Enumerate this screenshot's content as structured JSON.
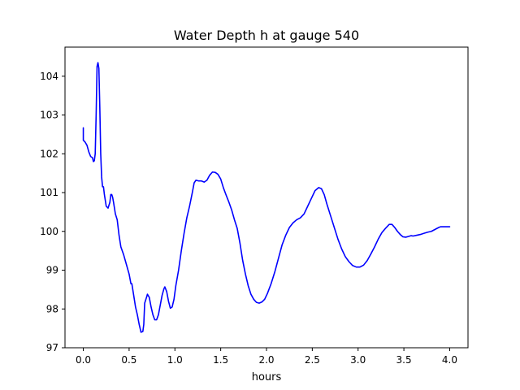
{
  "chart_data": {
    "type": "line",
    "title": "Water Depth h at gauge 540",
    "xlabel": "hours",
    "ylabel": "",
    "xlim": [
      -0.2,
      4.2
    ],
    "ylim": [
      97.0,
      104.75
    ],
    "x_ticks": [
      0.0,
      0.5,
      1.0,
      1.5,
      2.0,
      2.5,
      3.0,
      3.5,
      4.0
    ],
    "x_tick_labels": [
      "0.0",
      "0.5",
      "1.0",
      "1.5",
      "2.0",
      "2.5",
      "3.0",
      "3.5",
      "4.0"
    ],
    "y_ticks": [
      97,
      98,
      99,
      100,
      101,
      102,
      103,
      104
    ],
    "y_tick_labels": [
      "97",
      "98",
      "99",
      "100",
      "101",
      "102",
      "103",
      "104"
    ],
    "grid": false,
    "series": [
      {
        "name": "",
        "color": "#0000ff",
        "points": [
          [
            0.0,
            102.67
          ],
          [
            0.0,
            102.35
          ],
          [
            0.02,
            102.3
          ],
          [
            0.04,
            102.22
          ],
          [
            0.06,
            102.05
          ],
          [
            0.08,
            101.93
          ],
          [
            0.1,
            101.9
          ],
          [
            0.11,
            101.8
          ],
          [
            0.12,
            101.82
          ],
          [
            0.13,
            102.0
          ],
          [
            0.14,
            103.0
          ],
          [
            0.15,
            104.25
          ],
          [
            0.16,
            104.35
          ],
          [
            0.17,
            104.2
          ],
          [
            0.18,
            103.2
          ],
          [
            0.19,
            102.0
          ],
          [
            0.2,
            101.4
          ],
          [
            0.21,
            101.15
          ],
          [
            0.22,
            101.15
          ],
          [
            0.23,
            100.95
          ],
          [
            0.25,
            100.65
          ],
          [
            0.27,
            100.6
          ],
          [
            0.29,
            100.75
          ],
          [
            0.3,
            100.95
          ],
          [
            0.31,
            100.95
          ],
          [
            0.32,
            100.88
          ],
          [
            0.33,
            100.75
          ],
          [
            0.35,
            100.45
          ],
          [
            0.37,
            100.3
          ],
          [
            0.39,
            99.9
          ],
          [
            0.41,
            99.6
          ],
          [
            0.44,
            99.4
          ],
          [
            0.47,
            99.15
          ],
          [
            0.5,
            98.9
          ],
          [
            0.52,
            98.65
          ],
          [
            0.53,
            98.65
          ],
          [
            0.55,
            98.35
          ],
          [
            0.57,
            98.05
          ],
          [
            0.59,
            97.85
          ],
          [
            0.61,
            97.6
          ],
          [
            0.63,
            97.4
          ],
          [
            0.65,
            97.42
          ],
          [
            0.66,
            97.6
          ],
          [
            0.67,
            98.15
          ],
          [
            0.69,
            98.3
          ],
          [
            0.7,
            98.38
          ],
          [
            0.72,
            98.3
          ],
          [
            0.74,
            98.05
          ],
          [
            0.76,
            97.85
          ],
          [
            0.78,
            97.72
          ],
          [
            0.8,
            97.72
          ],
          [
            0.82,
            97.85
          ],
          [
            0.84,
            98.1
          ],
          [
            0.86,
            98.35
          ],
          [
            0.88,
            98.52
          ],
          [
            0.89,
            98.57
          ],
          [
            0.91,
            98.45
          ],
          [
            0.93,
            98.2
          ],
          [
            0.95,
            98.02
          ],
          [
            0.97,
            98.05
          ],
          [
            0.99,
            98.25
          ],
          [
            1.01,
            98.6
          ],
          [
            1.04,
            99.0
          ],
          [
            1.07,
            99.5
          ],
          [
            1.1,
            99.95
          ],
          [
            1.13,
            100.35
          ],
          [
            1.16,
            100.65
          ],
          [
            1.19,
            101.0
          ],
          [
            1.21,
            101.25
          ],
          [
            1.23,
            101.32
          ],
          [
            1.26,
            101.3
          ],
          [
            1.29,
            101.3
          ],
          [
            1.32,
            101.27
          ],
          [
            1.35,
            101.32
          ],
          [
            1.38,
            101.45
          ],
          [
            1.41,
            101.53
          ],
          [
            1.44,
            101.52
          ],
          [
            1.47,
            101.47
          ],
          [
            1.5,
            101.35
          ],
          [
            1.53,
            101.12
          ],
          [
            1.56,
            100.93
          ],
          [
            1.59,
            100.75
          ],
          [
            1.62,
            100.55
          ],
          [
            1.65,
            100.3
          ],
          [
            1.68,
            100.08
          ],
          [
            1.71,
            99.7
          ],
          [
            1.74,
            99.25
          ],
          [
            1.77,
            98.9
          ],
          [
            1.8,
            98.6
          ],
          [
            1.83,
            98.38
          ],
          [
            1.86,
            98.25
          ],
          [
            1.89,
            98.17
          ],
          [
            1.92,
            98.15
          ],
          [
            1.95,
            98.18
          ],
          [
            1.98,
            98.25
          ],
          [
            2.01,
            98.4
          ],
          [
            2.05,
            98.65
          ],
          [
            2.09,
            98.95
          ],
          [
            2.13,
            99.3
          ],
          [
            2.17,
            99.65
          ],
          [
            2.21,
            99.9
          ],
          [
            2.25,
            100.1
          ],
          [
            2.29,
            100.22
          ],
          [
            2.33,
            100.3
          ],
          [
            2.37,
            100.35
          ],
          [
            2.41,
            100.45
          ],
          [
            2.45,
            100.65
          ],
          [
            2.49,
            100.85
          ],
          [
            2.53,
            101.05
          ],
          [
            2.57,
            101.13
          ],
          [
            2.6,
            101.1
          ],
          [
            2.63,
            100.95
          ],
          [
            2.66,
            100.7
          ],
          [
            2.7,
            100.4
          ],
          [
            2.74,
            100.1
          ],
          [
            2.78,
            99.8
          ],
          [
            2.82,
            99.55
          ],
          [
            2.86,
            99.35
          ],
          [
            2.9,
            99.22
          ],
          [
            2.94,
            99.12
          ],
          [
            2.98,
            99.08
          ],
          [
            3.02,
            99.08
          ],
          [
            3.06,
            99.13
          ],
          [
            3.1,
            99.25
          ],
          [
            3.14,
            99.42
          ],
          [
            3.18,
            99.6
          ],
          [
            3.22,
            99.8
          ],
          [
            3.26,
            99.97
          ],
          [
            3.3,
            100.08
          ],
          [
            3.34,
            100.18
          ],
          [
            3.37,
            100.18
          ],
          [
            3.4,
            100.1
          ],
          [
            3.43,
            100.0
          ],
          [
            3.46,
            99.92
          ],
          [
            3.49,
            99.86
          ],
          [
            3.52,
            99.85
          ],
          [
            3.55,
            99.87
          ],
          [
            3.58,
            99.89
          ],
          [
            3.6,
            99.88
          ],
          [
            3.64,
            99.9
          ],
          [
            3.68,
            99.92
          ],
          [
            3.72,
            99.95
          ],
          [
            3.76,
            99.98
          ],
          [
            3.8,
            100.0
          ],
          [
            3.84,
            100.05
          ],
          [
            3.88,
            100.1
          ],
          [
            3.9,
            100.12
          ],
          [
            4.0,
            100.12
          ]
        ]
      }
    ]
  }
}
